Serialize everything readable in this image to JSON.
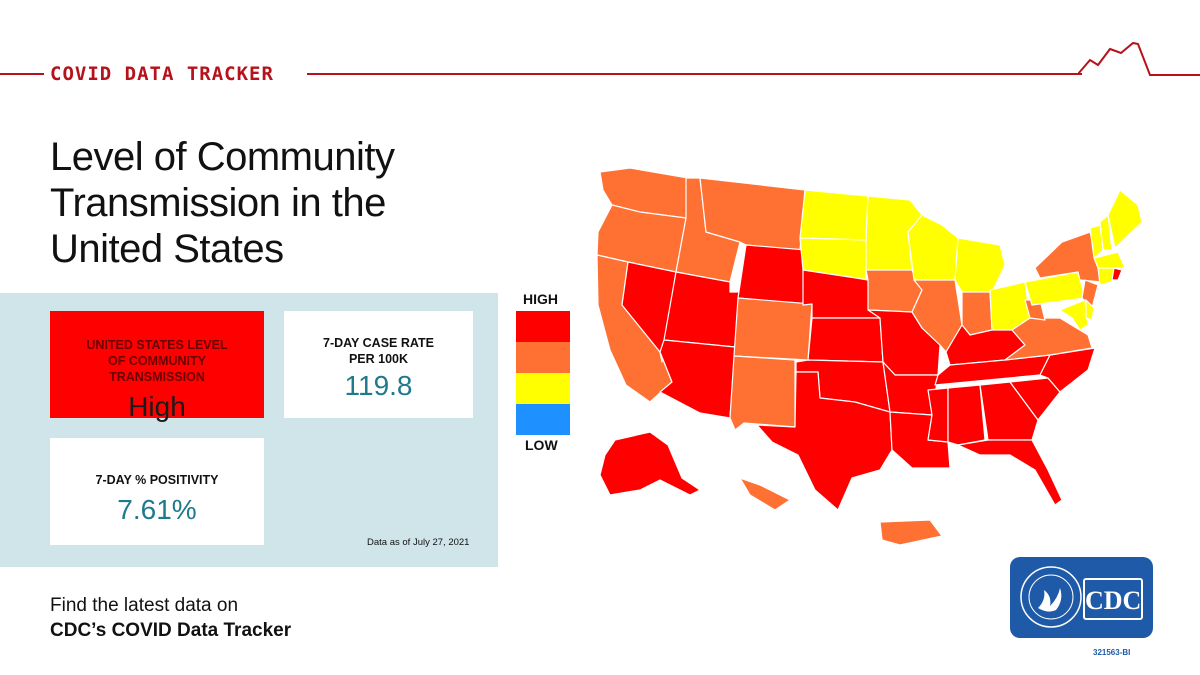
{
  "header": {
    "title": "COVID DATA TRACKER"
  },
  "heading": {
    "line1": "Level of Community",
    "line2": "Transmission in the",
    "line3": "United States"
  },
  "cards": {
    "level": {
      "label_line1": "UNITED STATES LEVEL",
      "label_line2": "OF COMMUNITY",
      "label_line3": "TRANSMISSION",
      "value": "High"
    },
    "case_rate": {
      "label_line1": "7-DAY CASE RATE",
      "label_line2": "PER 100K",
      "value": "119.8"
    },
    "positivity": {
      "label": "7-DAY % POSITIVITY",
      "value": "7.61%"
    }
  },
  "as_of": "Data as of July 27, 2021",
  "footer": {
    "line1": "Find the latest data on",
    "line2": "CDC’s COVID Data Tracker"
  },
  "legend": {
    "high_label": "HIGH",
    "low_label": "LOW",
    "levels": [
      {
        "name": "High",
        "color": "#ff0000"
      },
      {
        "name": "Substantial",
        "color": "#ff7033"
      },
      {
        "name": "Moderate",
        "color": "#ffff00"
      },
      {
        "name": "Low",
        "color": "#1e90ff"
      }
    ]
  },
  "map_colors": {
    "high": "#ff0000",
    "substantial": "#ff7033",
    "moderate": "#ffff00",
    "border": "#ffffff"
  },
  "state_levels": {
    "WA": "substantial",
    "OR": "substantial",
    "CA": "substantial",
    "ID": "substantial",
    "MT": "substantial",
    "NV": "high",
    "UT": "high",
    "AZ": "high",
    "WY": "high",
    "CO": "substantial",
    "NM": "substantial",
    "ND": "moderate",
    "SD": "moderate",
    "NE": "high",
    "KS": "high",
    "OK": "high",
    "TX": "high",
    "MN": "moderate",
    "IA": "substantial",
    "MO": "high",
    "AR": "high",
    "LA": "high",
    "WI": "moderate",
    "IL": "substantial",
    "MI": "moderate",
    "IN": "substantial",
    "OH": "moderate",
    "KY": "high",
    "TN": "high",
    "MS": "high",
    "AL": "high",
    "GA": "high",
    "FL": "high",
    "SC": "high",
    "NC": "high",
    "VA": "substantial",
    "WV": "substantial",
    "PA": "moderate",
    "NY": "substantial",
    "NJ": "substantial",
    "MD": "moderate",
    "DE": "moderate",
    "ME": "moderate",
    "VT": "moderate",
    "NH": "moderate",
    "MA": "moderate",
    "CT": "moderate",
    "RI": "high",
    "AK": "high",
    "HI": "substantial",
    "PR": "substantial"
  },
  "logo": {
    "text": "CDC",
    "brand_color": "#1f5aa8"
  },
  "doc_id": "321563-BI",
  "accent_color": "#b5121b"
}
